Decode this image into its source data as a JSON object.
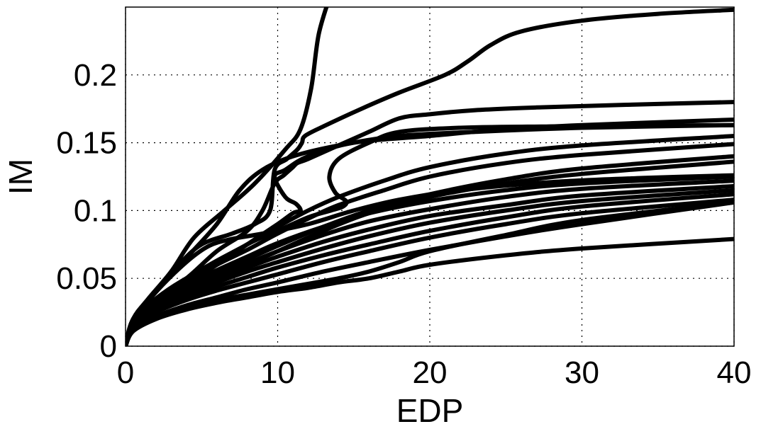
{
  "chart_data": {
    "type": "line",
    "title": "",
    "xlabel": "EDP",
    "ylabel": "IM",
    "xlim": [
      0,
      40
    ],
    "ylim": [
      0,
      0.25
    ],
    "xticks": [
      0,
      10,
      20,
      30,
      40
    ],
    "xtick_labels": [
      "0",
      "10",
      "20",
      "30",
      "40"
    ],
    "yticks": [
      0,
      0.05,
      0.1,
      0.15,
      0.2
    ],
    "ytick_labels": [
      "0",
      "0.05",
      "0.1",
      "0.15",
      "0.2"
    ],
    "grid": true,
    "legend": false,
    "line_color": "#000000",
    "series": [
      {
        "x": [
          0,
          0.5,
          1.5,
          3,
          4.5,
          6.5,
          8.5,
          10.5,
          11.5,
          12.2,
          12.7,
          13.5
        ],
        "y": [
          0,
          0.02,
          0.035,
          0.055,
          0.08,
          0.1,
          0.12,
          0.145,
          0.16,
          0.19,
          0.23,
          0.26
        ]
      },
      {
        "x": [
          0,
          0.5,
          2,
          4,
          6,
          7.5,
          9,
          11,
          14,
          18,
          23,
          30,
          40
        ],
        "y": [
          0,
          0.02,
          0.04,
          0.065,
          0.09,
          0.115,
          0.13,
          0.14,
          0.148,
          0.155,
          0.158,
          0.161,
          0.163
        ]
      },
      {
        "x": [
          0,
          0.5,
          2,
          3.5,
          5,
          7,
          8.5,
          9.5,
          9.8,
          10.6,
          11.3,
          11.6,
          11.8,
          13,
          15.5,
          18,
          21,
          22.5,
          24,
          26,
          30,
          35,
          40
        ],
        "y": [
          0,
          0.02,
          0.04,
          0.06,
          0.075,
          0.083,
          0.09,
          0.1,
          0.13,
          0.138,
          0.145,
          0.15,
          0.155,
          0.162,
          0.175,
          0.187,
          0.2,
          0.21,
          0.222,
          0.232,
          0.24,
          0.245,
          0.248
        ]
      },
      {
        "x": [
          0,
          0.5,
          2,
          4,
          6,
          8,
          9,
          9.8,
          10.4,
          11,
          11.3,
          12,
          14,
          16,
          18,
          20,
          23,
          27,
          33,
          40
        ],
        "y": [
          0,
          0.018,
          0.035,
          0.05,
          0.07,
          0.085,
          0.1,
          0.12,
          0.126,
          0.132,
          0.135,
          0.138,
          0.148,
          0.158,
          0.168,
          0.171,
          0.174,
          0.176,
          0.178,
          0.18
        ]
      },
      {
        "x": [
          0,
          0.5,
          2,
          4,
          6,
          8,
          10,
          11,
          11.5,
          11.2,
          10.5,
          9.8,
          10.5,
          12,
          15,
          20,
          25,
          30,
          40
        ],
        "y": [
          0,
          0.018,
          0.035,
          0.05,
          0.06,
          0.075,
          0.09,
          0.098,
          0.1,
          0.105,
          0.11,
          0.125,
          0.13,
          0.14,
          0.15,
          0.155,
          0.16,
          0.163,
          0.167
        ]
      },
      {
        "x": [
          0,
          0.5,
          2,
          4,
          6,
          8,
          10,
          12,
          13.5,
          14.3,
          14.5,
          13.8,
          13.4,
          14,
          16,
          18,
          22,
          28,
          40
        ],
        "y": [
          0,
          0.015,
          0.03,
          0.045,
          0.06,
          0.075,
          0.085,
          0.095,
          0.1,
          0.103,
          0.107,
          0.113,
          0.125,
          0.138,
          0.15,
          0.158,
          0.161,
          0.162,
          0.163
        ]
      },
      {
        "x": [
          0,
          0.5,
          2,
          4,
          6,
          8,
          10,
          12,
          14,
          17,
          20,
          25,
          30,
          40
        ],
        "y": [
          0,
          0.018,
          0.035,
          0.05,
          0.063,
          0.075,
          0.088,
          0.1,
          0.11,
          0.122,
          0.132,
          0.142,
          0.148,
          0.155
        ]
      },
      {
        "x": [
          0,
          0.5,
          2,
          4,
          6,
          8,
          10,
          12,
          14,
          17,
          20,
          25,
          30,
          40
        ],
        "y": [
          0,
          0.017,
          0.033,
          0.047,
          0.06,
          0.071,
          0.083,
          0.094,
          0.104,
          0.115,
          0.125,
          0.135,
          0.141,
          0.149
        ]
      },
      {
        "x": [
          0,
          0.5,
          2,
          4,
          5.5,
          7,
          9,
          12,
          15,
          18,
          22,
          28,
          34,
          40
        ],
        "y": [
          0,
          0.02,
          0.04,
          0.062,
          0.074,
          0.079,
          0.083,
          0.09,
          0.1,
          0.108,
          0.115,
          0.121,
          0.124,
          0.126
        ]
      },
      {
        "x": [
          0,
          0.5,
          2,
          4,
          6,
          8,
          10,
          13,
          16,
          20,
          25,
          30,
          40
        ],
        "y": [
          0,
          0.016,
          0.032,
          0.045,
          0.056,
          0.066,
          0.076,
          0.088,
          0.098,
          0.107,
          0.115,
          0.12,
          0.125
        ]
      },
      {
        "x": [
          0,
          0.5,
          2,
          4,
          6,
          8,
          10,
          13,
          16,
          20,
          25,
          30,
          40
        ],
        "y": [
          0,
          0.016,
          0.03,
          0.042,
          0.052,
          0.061,
          0.07,
          0.082,
          0.092,
          0.101,
          0.11,
          0.116,
          0.122
        ]
      },
      {
        "x": [
          0,
          0.5,
          2,
          4,
          6,
          8,
          10,
          13,
          16,
          20,
          25,
          30,
          40
        ],
        "y": [
          0,
          0.015,
          0.029,
          0.04,
          0.05,
          0.058,
          0.066,
          0.077,
          0.086,
          0.096,
          0.104,
          0.111,
          0.118
        ]
      },
      {
        "x": [
          0,
          0.5,
          2,
          4,
          6,
          8,
          10,
          13,
          16,
          20,
          25,
          30,
          40
        ],
        "y": [
          0,
          0.015,
          0.028,
          0.038,
          0.047,
          0.055,
          0.062,
          0.072,
          0.081,
          0.091,
          0.1,
          0.107,
          0.115
        ]
      },
      {
        "x": [
          0,
          0.5,
          2,
          4,
          6,
          8,
          10,
          13,
          16,
          20,
          25,
          30,
          40
        ],
        "y": [
          0,
          0.014,
          0.026,
          0.036,
          0.044,
          0.051,
          0.058,
          0.067,
          0.075,
          0.085,
          0.095,
          0.103,
          0.112
        ]
      },
      {
        "x": [
          0,
          0.5,
          2,
          4,
          6,
          8,
          10,
          13,
          16,
          20,
          25,
          30,
          40
        ],
        "y": [
          0,
          0.014,
          0.025,
          0.034,
          0.041,
          0.047,
          0.053,
          0.062,
          0.07,
          0.08,
          0.09,
          0.098,
          0.108
        ]
      },
      {
        "x": [
          0,
          0.5,
          2,
          4,
          6,
          8,
          10,
          13,
          16,
          20,
          25,
          30,
          40
        ],
        "y": [
          0,
          0.012,
          0.022,
          0.03,
          0.036,
          0.042,
          0.047,
          0.055,
          0.062,
          0.071,
          0.081,
          0.09,
          0.106
        ]
      },
      {
        "x": [
          0,
          0.5,
          2,
          4,
          6,
          8,
          10,
          12,
          14,
          16,
          18,
          20,
          25,
          30,
          40
        ],
        "y": [
          0,
          0.011,
          0.02,
          0.027,
          0.032,
          0.036,
          0.04,
          0.043,
          0.047,
          0.05,
          0.055,
          0.06,
          0.067,
          0.072,
          0.079
        ]
      },
      {
        "x": [
          0,
          0.5,
          2,
          4,
          6,
          8,
          10,
          12,
          14,
          16,
          18,
          20,
          25,
          30,
          40
        ],
        "y": [
          0,
          0.012,
          0.021,
          0.029,
          0.034,
          0.038,
          0.042,
          0.046,
          0.05,
          0.055,
          0.062,
          0.07,
          0.082,
          0.093,
          0.106
        ]
      },
      {
        "x": [
          0,
          0.5,
          2,
          4,
          6,
          8,
          10,
          13,
          16,
          20,
          25,
          30,
          40
        ],
        "y": [
          0,
          0.015,
          0.028,
          0.04,
          0.05,
          0.06,
          0.07,
          0.085,
          0.098,
          0.11,
          0.12,
          0.127,
          0.136
        ]
      },
      {
        "x": [
          0,
          0.5,
          2,
          4,
          6,
          8,
          10,
          13,
          16,
          20,
          25,
          30,
          40
        ],
        "y": [
          0,
          0.016,
          0.03,
          0.043,
          0.054,
          0.064,
          0.074,
          0.088,
          0.1,
          0.112,
          0.123,
          0.131,
          0.14
        ]
      }
    ]
  }
}
